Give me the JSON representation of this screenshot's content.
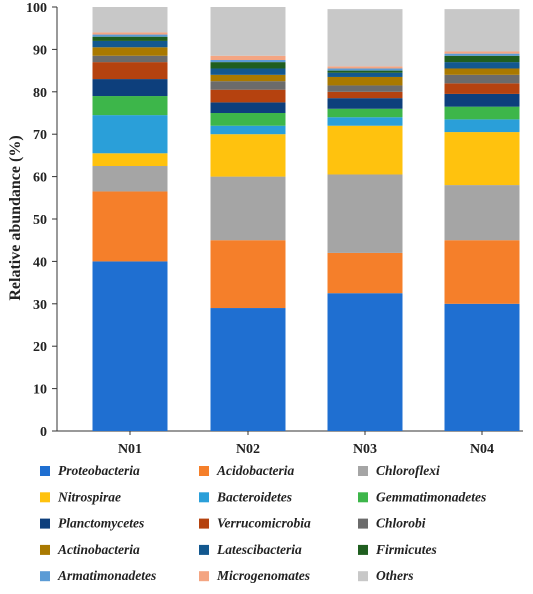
{
  "chart_data": {
    "type": "bar",
    "stacked": true,
    "title": "",
    "xlabel": "",
    "ylabel": "Relative abundance (%)",
    "ylim": [
      0,
      100
    ],
    "yticks": [
      0,
      10,
      20,
      30,
      40,
      50,
      60,
      70,
      80,
      90,
      100
    ],
    "grid": false,
    "legend_position": "bottom",
    "categories": [
      "N01",
      "N02",
      "N03",
      "N04"
    ],
    "series": [
      {
        "name": "Proteobacteria",
        "color": "#1f6fd1",
        "values": [
          40.0,
          29.0,
          32.5,
          30.0
        ]
      },
      {
        "name": "Acidobacteria",
        "color": "#f57f2a",
        "values": [
          16.5,
          16.0,
          9.5,
          15.0
        ]
      },
      {
        "name": "Chloroflexi",
        "color": "#a5a5a5",
        "values": [
          6.0,
          15.0,
          18.5,
          13.0
        ]
      },
      {
        "name": "Nitrospirae",
        "color": "#ffc20e",
        "values": [
          3.0,
          10.0,
          11.5,
          12.5
        ]
      },
      {
        "name": "Bacteroidetes",
        "color": "#2a9fd9",
        "values": [
          9.0,
          2.0,
          2.0,
          3.0
        ]
      },
      {
        "name": "Gemmatimonadetes",
        "color": "#3db64a",
        "values": [
          4.5,
          3.0,
          2.0,
          3.0
        ]
      },
      {
        "name": "Planctomycetes",
        "color": "#0d3f7c",
        "values": [
          4.0,
          2.5,
          2.5,
          3.0
        ]
      },
      {
        "name": "Verrucomicrobia",
        "color": "#b5420f",
        "values": [
          4.0,
          3.0,
          1.5,
          2.5
        ]
      },
      {
        "name": "Chlorobi",
        "color": "#6b6b6b",
        "values": [
          1.5,
          2.0,
          1.5,
          2.0
        ]
      },
      {
        "name": "Actinobacteria",
        "color": "#a97900",
        "values": [
          2.0,
          1.5,
          2.0,
          1.5
        ]
      },
      {
        "name": "Latescibacteria",
        "color": "#13588f",
        "values": [
          1.5,
          1.5,
          1.0,
          1.5
        ]
      },
      {
        "name": "Firmicutes",
        "color": "#1f5e1f",
        "values": [
          1.0,
          1.5,
          0.5,
          1.5
        ]
      },
      {
        "name": "Armatimonadetes",
        "color": "#5b9bd5",
        "values": [
          0.5,
          0.5,
          0.5,
          0.5
        ]
      },
      {
        "name": "Microgenomates",
        "color": "#f4a582",
        "values": [
          0.5,
          1.0,
          0.5,
          0.5
        ]
      },
      {
        "name": "Others",
        "color": "#c8c8c8",
        "values": [
          6.0,
          11.5,
          13.5,
          10.0
        ]
      }
    ]
  }
}
